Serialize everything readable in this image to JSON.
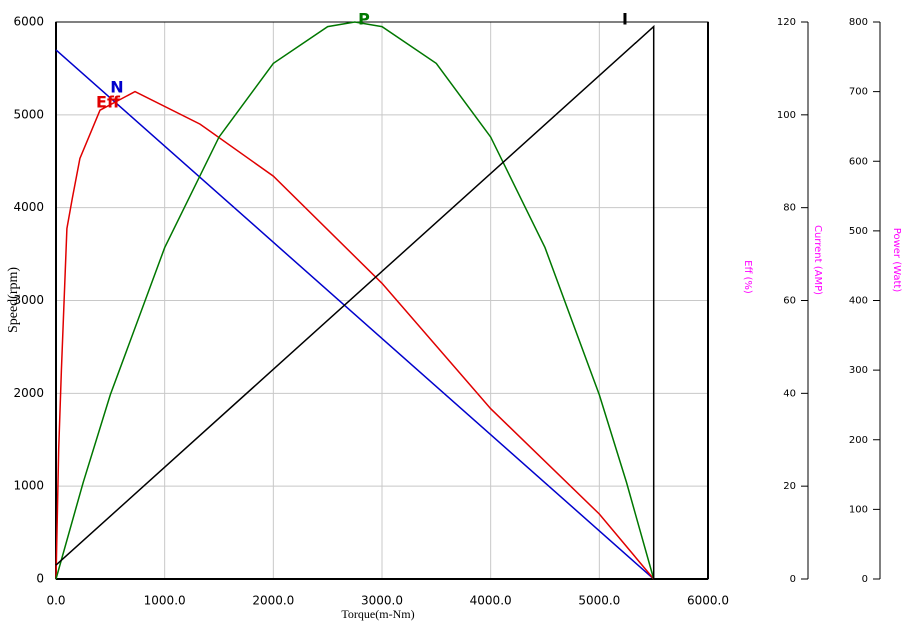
{
  "chart_data": {
    "type": "line",
    "xlabel": "Torque(m-Nm)",
    "ylabel": "Speed(rpm)",
    "y2label": "Eff  (%)",
    "y2label_b": "Current (AMP)",
    "y3label": "Power (Watt)",
    "xlim": [
      0,
      6000
    ],
    "xticks": [
      {
        "value": 0,
        "label": "0.0"
      },
      {
        "value": 1000,
        "label": "1000.0"
      },
      {
        "value": 2000,
        "label": "2000.0"
      },
      {
        "value": 3000,
        "label": "3000.0"
      },
      {
        "value": 4000,
        "label": "4000.0"
      },
      {
        "value": 5000,
        "label": "5000.0"
      },
      {
        "value": 6000,
        "label": "6000.0"
      }
    ],
    "ylim": [
      0,
      6000
    ],
    "yticks": [
      0,
      1000,
      2000,
      3000,
      4000,
      5000,
      6000
    ],
    "y2lim": [
      0,
      120
    ],
    "y2ticks": [
      0,
      20,
      40,
      60,
      80,
      100,
      120
    ],
    "y3lim": [
      0,
      800
    ],
    "y3ticks": [
      0,
      100,
      200,
      300,
      400,
      500,
      600,
      700,
      800
    ],
    "grid": true,
    "series": [
      {
        "name": "N",
        "color": "#0000cc",
        "x": [
          0,
          5500
        ],
        "values": [
          5700,
          0
        ]
      },
      {
        "name": "Eff",
        "color": "#e00000",
        "axis": "y2",
        "x": [
          0,
          25,
          50,
          100,
          150,
          220,
          405,
          727,
          1325,
          2000,
          3000,
          4000,
          5000,
          5500
        ],
        "values": [
          0,
          28,
          45,
          75.5,
          82,
          90.6,
          101,
          105,
          98,
          86.8,
          63.7,
          36.7,
          14,
          0
        ]
      },
      {
        "name": "P",
        "color": "#007700",
        "axis": "y3",
        "x": [
          0,
          250,
          500,
          1000,
          1500,
          2000,
          2500,
          2750,
          3000,
          3500,
          4000,
          4500,
          5000,
          5250,
          5500
        ],
        "values": [
          0,
          138.8,
          264.5,
          476,
          634.7,
          740.5,
          793.4,
          800,
          793.4,
          740.5,
          634.7,
          476,
          264.5,
          138.8,
          0
        ]
      },
      {
        "name": "I",
        "color": "#000000",
        "axis": "y2",
        "x": [
          0,
          5500,
          5500
        ],
        "values": [
          3,
          119,
          0
        ]
      }
    ]
  }
}
